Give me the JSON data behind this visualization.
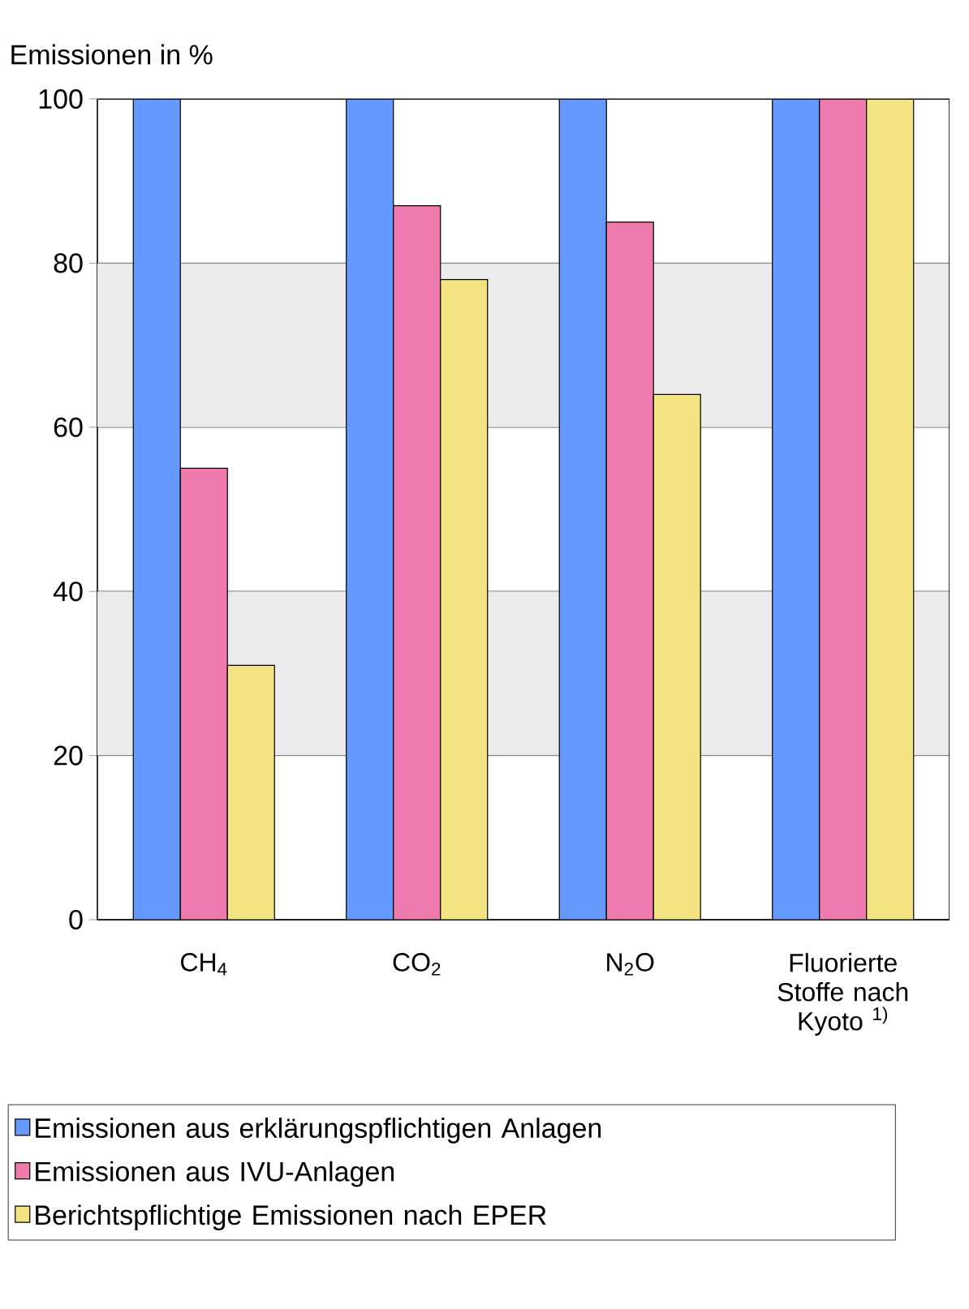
{
  "chart_data": {
    "type": "bar",
    "ylabel": "Emissionen in %",
    "categories": [
      "CH$_{4}$",
      "CO$_{2}$",
      "N$_{2}$O",
      "Fluorierte Stoffe nach Kyoto $^{1)}$"
    ],
    "series": [
      {
        "name": "Emissionen aus erklärungspflichtigen Anlagen",
        "color": "#6699ff",
        "values": [
          100,
          100,
          100,
          100
        ]
      },
      {
        "name": "Emissionen aus IVU-Anlagen",
        "color": "#ee7aae",
        "values": [
          55,
          87,
          85,
          100
        ]
      },
      {
        "name": "Berichtspflichtige Emissionen nach EPER",
        "color": "#f3e381",
        "values": [
          31,
          78,
          64,
          100
        ]
      }
    ],
    "ylim": [
      0,
      100
    ],
    "yticks": [
      0,
      20,
      40,
      60,
      80,
      100
    ],
    "grid": "y",
    "legend": "bottom",
    "bands": [
      {
        "axis": "y",
        "from": 20,
        "to": 40,
        "color": "#ebebeb"
      },
      {
        "axis": "y",
        "from": 60,
        "to": 80,
        "color": "#ebebeb"
      }
    ]
  }
}
